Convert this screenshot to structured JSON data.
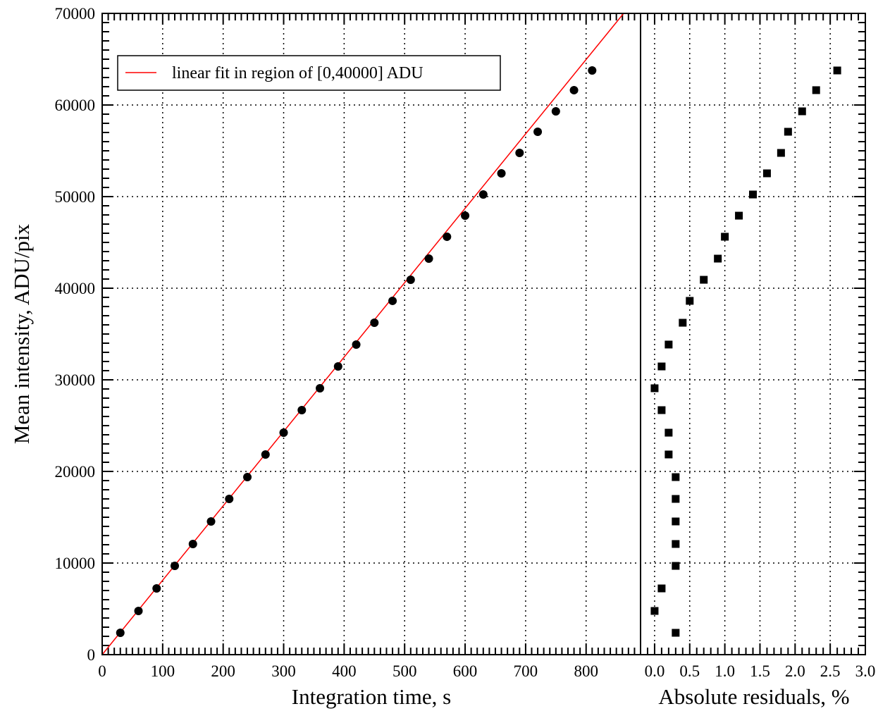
{
  "chart_data": [
    {
      "type": "scatter",
      "xlabel": "Integration time, s",
      "ylabel": "Mean intensity, ADU/pix",
      "xlim": [
        0,
        890
      ],
      "ylim": [
        0,
        70000
      ],
      "xticks": [
        "0",
        "100",
        "200",
        "300",
        "400",
        "500",
        "600",
        "700",
        "800"
      ],
      "yticks": [
        "0",
        "10000",
        "20000",
        "30000",
        "40000",
        "50000",
        "60000",
        "70000"
      ],
      "grid": true,
      "legend_position": "top-left",
      "series": [
        {
          "marker": "circle",
          "color": "#000000",
          "x": [
            30,
            60,
            90,
            120,
            150,
            180,
            210,
            240,
            270,
            300,
            330,
            360,
            390,
            420,
            450,
            480,
            510,
            540,
            570,
            600,
            630,
            660,
            690,
            720,
            750,
            780,
            810
          ],
          "y": [
            2385,
            4770,
            7230,
            9690,
            12080,
            14540,
            17000,
            19380,
            21850,
            24230,
            26690,
            29080,
            31460,
            33850,
            36230,
            38620,
            40920,
            43230,
            45620,
            47920,
            50230,
            52540,
            54770,
            57080,
            59310,
            61620,
            63770
          ]
        },
        {
          "name": "linear fit in region of [0,40000] ADU",
          "type": "line",
          "color": "#ff0000",
          "x": [
            0,
            862
          ],
          "y": [
            0,
            70000
          ]
        }
      ]
    },
    {
      "type": "scatter",
      "xlabel": "Absolute residuals, %",
      "xlim": [
        -0.2,
        3.0
      ],
      "ylim": [
        0,
        70000
      ],
      "xticks": [
        "0.0",
        "0.5",
        "1.0",
        "1.5",
        "2.0",
        "2.5",
        "3.0"
      ],
      "grid": true,
      "series": [
        {
          "marker": "square",
          "color": "#000000",
          "x": [
            0.3,
            0.0,
            0.1,
            0.3,
            0.3,
            0.3,
            0.3,
            0.3,
            0.2,
            0.2,
            0.1,
            0.0,
            0.1,
            0.2,
            0.4,
            0.5,
            0.7,
            0.9,
            1.0,
            1.2,
            1.4,
            1.6,
            1.8,
            1.9,
            2.1,
            2.3,
            2.6
          ],
          "y": [
            2385,
            4770,
            7230,
            9690,
            12080,
            14540,
            17000,
            19380,
            21850,
            24230,
            26690,
            29080,
            31460,
            33850,
            36230,
            38620,
            40920,
            43230,
            45620,
            47920,
            50230,
            52540,
            54770,
            57080,
            59310,
            61620,
            63770
          ]
        }
      ]
    }
  ]
}
